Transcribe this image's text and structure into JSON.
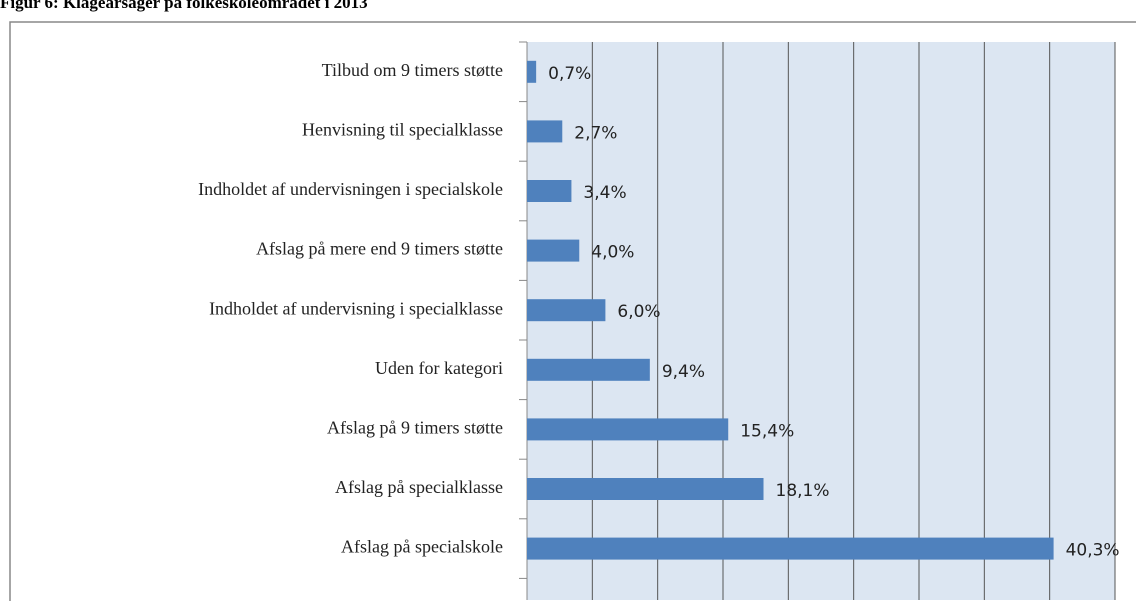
{
  "chart_data": {
    "type": "bar",
    "orientation": "horizontal",
    "title": "Figur 6: Klageårsager på folkeskoleområdet i 2013",
    "categories": [
      "Tilbud om 9 timers støtte",
      "Henvisning til specialklasse",
      "Indholdet af undervisningen i specialskole",
      "Afslag på mere end 9 timers støtte",
      "Indholdet af undervisning i specialklasse",
      "Uden for kategori",
      "Afslag på 9 timers støtte",
      "Afslag på specialklasse",
      "Afslag på specialskole"
    ],
    "values": [
      0.7,
      2.7,
      3.4,
      4.0,
      6.0,
      9.4,
      15.4,
      18.1,
      40.3
    ],
    "value_labels": [
      "0,7%",
      "2,7%",
      "3,4%",
      "4,0%",
      "6,0%",
      "9,4%",
      "15,4%",
      "18,1%",
      "40,3%"
    ],
    "color": "#4f81bd",
    "xlim": [
      0,
      45
    ],
    "xticks": [
      0,
      5,
      10,
      15,
      20,
      25,
      30,
      35,
      40,
      45
    ],
    "grid": true
  }
}
